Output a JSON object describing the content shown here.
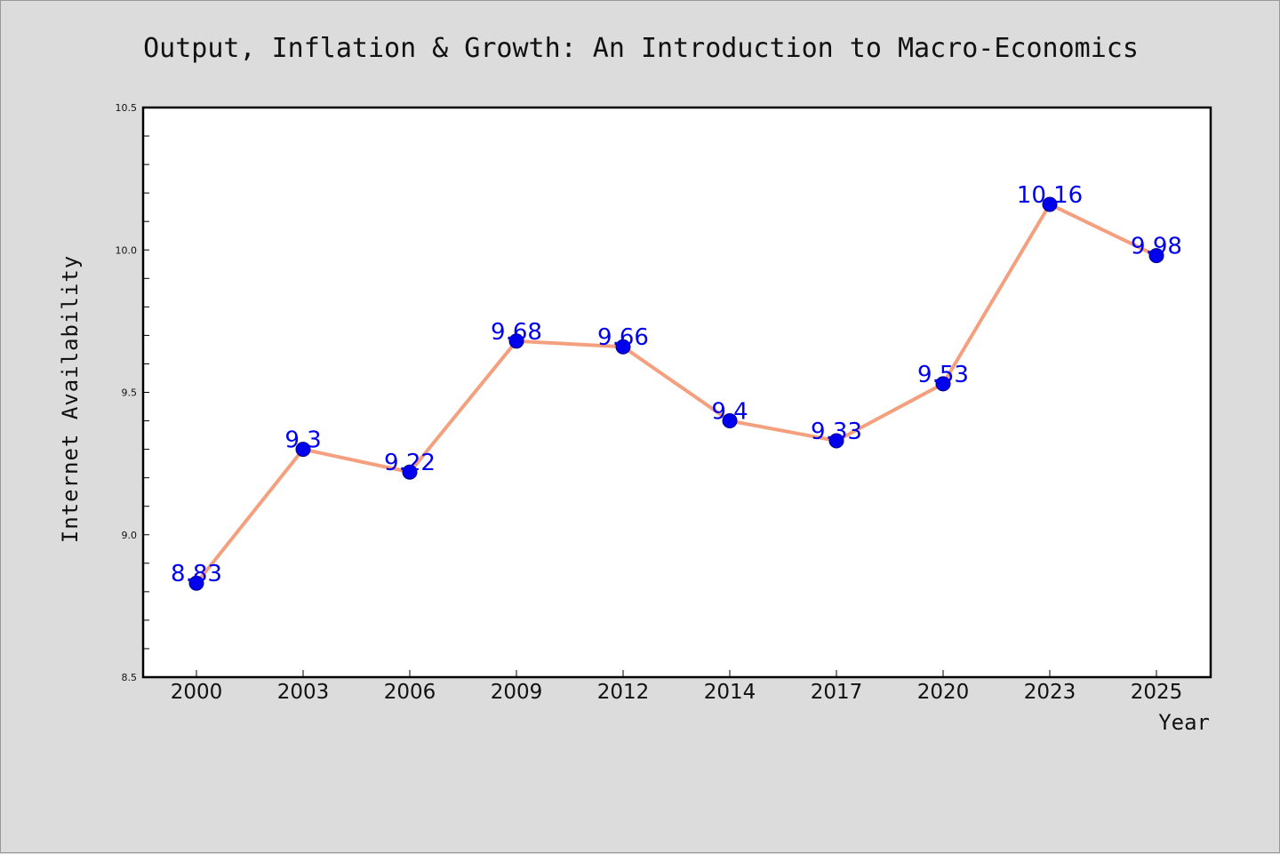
{
  "colors": {
    "background": "#dcdcdc",
    "plot_background": "#ffffff",
    "line": "#f4a07e",
    "marker": "#0000ee",
    "data_label": "#0000ee"
  },
  "chart_data": {
    "type": "line",
    "title": "Output, Inflation & Growth: An Introduction to Macro-Economics",
    "xlabel": "Year",
    "ylabel": "Internet Availability",
    "categories": [
      "2000",
      "2003",
      "2006",
      "2009",
      "2012",
      "2014",
      "2017",
      "2020",
      "2023",
      "2025"
    ],
    "series": [
      {
        "values": [
          8.83,
          9.3,
          9.22,
          9.68,
          9.66,
          9.4,
          9.33,
          9.53,
          10.16,
          9.98
        ]
      }
    ],
    "data_labels": [
      "8.83",
      "9.3",
      "9.22",
      "9.68",
      "9.66",
      "9.4",
      "9.33",
      "9.53",
      "10.16",
      "9.98"
    ],
    "ylim": [
      8.5,
      10.5
    ],
    "yticks": [
      "8.5",
      "9.0",
      "9.5",
      "10.0",
      "10.5"
    ],
    "grid": false,
    "legend": "none"
  }
}
